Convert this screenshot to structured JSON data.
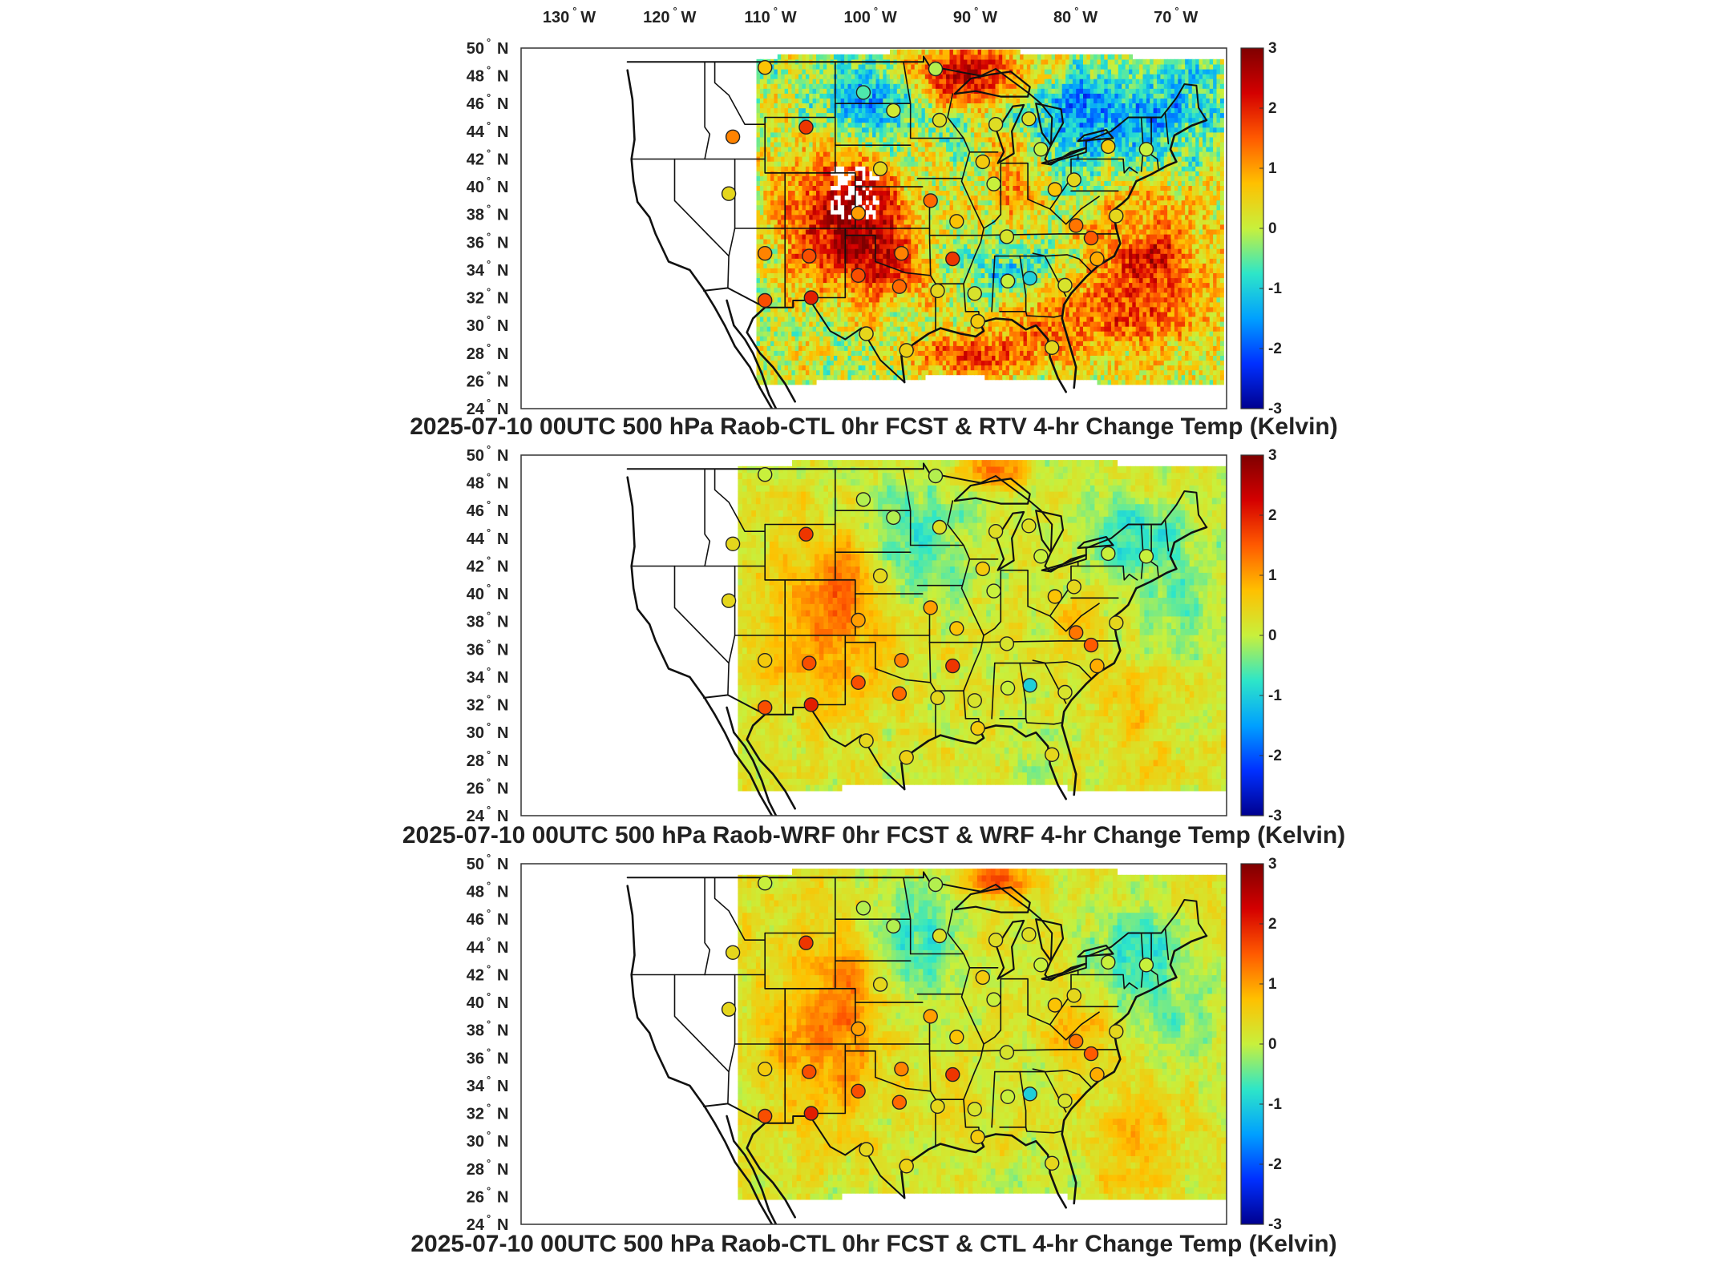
{
  "lon_labels": [
    {
      "deg": "130",
      "hemi": "W"
    },
    {
      "deg": "120",
      "hemi": "W"
    },
    {
      "deg": "110",
      "hemi": "W"
    },
    {
      "deg": "100",
      "hemi": "W"
    },
    {
      "deg": "90",
      "hemi": "W"
    },
    {
      "deg": "80",
      "hemi": "W"
    },
    {
      "deg": "70",
      "hemi": "W"
    }
  ],
  "lat_labels": [
    {
      "deg": "50",
      "hemi": "N"
    },
    {
      "deg": "48",
      "hemi": "N"
    },
    {
      "deg": "46",
      "hemi": "N"
    },
    {
      "deg": "44",
      "hemi": "N"
    },
    {
      "deg": "42",
      "hemi": "N"
    },
    {
      "deg": "40",
      "hemi": "N"
    },
    {
      "deg": "38",
      "hemi": "N"
    },
    {
      "deg": "36",
      "hemi": "N"
    },
    {
      "deg": "34",
      "hemi": "N"
    },
    {
      "deg": "32",
      "hemi": "N"
    },
    {
      "deg": "30",
      "hemi": "N"
    },
    {
      "deg": "28",
      "hemi": "N"
    },
    {
      "deg": "26",
      "hemi": "N"
    },
    {
      "deg": "24",
      "hemi": "N"
    }
  ],
  "colorbar": {
    "min": -3,
    "max": 3,
    "ticks": [
      "3",
      "2",
      "1",
      "0",
      "-1",
      "-2",
      "-3"
    ],
    "colors": [
      "#7f0000",
      "#d40000",
      "#ff5a00",
      "#ffc000",
      "#c8f03c",
      "#2ee6c8",
      "#00a0ff",
      "#0030ff",
      "#00008f"
    ]
  },
  "panels": [
    {
      "id": "rtv",
      "title": "2025-07-10 00UTC 500 hPa Raob-CTL 0hr FCST & RTV 4-hr Change Temp (Kelvin)",
      "style": "hot"
    },
    {
      "id": "wrf",
      "title": "2025-07-10 00UTC 500 hPa Raob-WRF 0hr FCST & WRF 4-hr Change Temp (Kelvin)",
      "style": "mild"
    },
    {
      "id": "ctl",
      "title": "2025-07-10 00UTC 500 hPa Raob-CTL 0hr FCST & CTL 4-hr Change Temp (Kelvin)",
      "style": "mild2"
    }
  ],
  "stations": [
    {
      "lon": -111.0,
      "lat": 48.6,
      "v": [
        0.7,
        0.0,
        0.0
      ]
    },
    {
      "lon": -101.2,
      "lat": 46.8,
      "v": [
        -0.6,
        -0.1,
        -0.1
      ]
    },
    {
      "lon": -94.0,
      "lat": 48.5,
      "v": [
        -0.1,
        -0.1,
        -0.1
      ]
    },
    {
      "lon": -98.2,
      "lat": 45.5,
      "v": [
        0.1,
        -0.1,
        -0.1
      ]
    },
    {
      "lon": -93.6,
      "lat": 44.8,
      "v": [
        0.3,
        0.3,
        0.3
      ]
    },
    {
      "lon": -88.0,
      "lat": 44.5,
      "v": [
        0.3,
        0.3,
        0.3
      ]
    },
    {
      "lon": -84.7,
      "lat": 44.9,
      "v": [
        0.3,
        0.3,
        0.3
      ]
    },
    {
      "lon": -83.5,
      "lat": 42.7,
      "v": [
        0.0,
        0.0,
        0.0
      ]
    },
    {
      "lon": -76.8,
      "lat": 42.9,
      "v": [
        0.6,
        0.0,
        0.0
      ]
    },
    {
      "lon": -73.0,
      "lat": 42.7,
      "v": [
        0.0,
        0.0,
        0.0
      ]
    },
    {
      "lon": -106.9,
      "lat": 44.3,
      "v": [
        1.8,
        1.8,
        1.8
      ]
    },
    {
      "lon": -114.2,
      "lat": 43.6,
      "v": [
        1.2,
        0.4,
        0.4
      ]
    },
    {
      "lon": -114.6,
      "lat": 39.5,
      "v": [
        0.4,
        0.4,
        0.4
      ]
    },
    {
      "lon": -99.5,
      "lat": 41.3,
      "v": [
        0.4,
        0.4,
        0.4
      ]
    },
    {
      "lon": -89.3,
      "lat": 41.8,
      "v": [
        0.6,
        0.6,
        0.6
      ]
    },
    {
      "lon": -88.2,
      "lat": 40.2,
      "v": [
        0.0,
        0.0,
        0.0
      ]
    },
    {
      "lon": -82.1,
      "lat": 39.8,
      "v": [
        0.7,
        0.7,
        0.7
      ]
    },
    {
      "lon": -80.2,
      "lat": 40.5,
      "v": [
        0.4,
        0.4,
        0.4
      ]
    },
    {
      "lon": -94.5,
      "lat": 39.0,
      "v": [
        1.4,
        1.0,
        1.0
      ]
    },
    {
      "lon": -101.7,
      "lat": 38.1,
      "v": [
        1.0,
        1.0,
        1.0
      ]
    },
    {
      "lon": -91.9,
      "lat": 37.5,
      "v": [
        0.7,
        0.7,
        0.7
      ]
    },
    {
      "lon": -86.9,
      "lat": 36.4,
      "v": [
        0.2,
        0.2,
        0.2
      ]
    },
    {
      "lon": -80.0,
      "lat": 37.2,
      "v": [
        1.3,
        1.3,
        1.3
      ]
    },
    {
      "lon": -78.5,
      "lat": 36.3,
      "v": [
        1.5,
        1.5,
        1.5
      ]
    },
    {
      "lon": -76.0,
      "lat": 37.9,
      "v": [
        0.4,
        0.4,
        0.4
      ]
    },
    {
      "lon": -106.6,
      "lat": 35.0,
      "v": [
        1.6,
        1.6,
        1.6
      ]
    },
    {
      "lon": -111.0,
      "lat": 35.2,
      "v": [
        1.2,
        0.6,
        0.6
      ]
    },
    {
      "lon": -97.4,
      "lat": 35.2,
      "v": [
        1.2,
        1.2,
        1.2
      ]
    },
    {
      "lon": -92.3,
      "lat": 34.8,
      "v": [
        1.8,
        1.8,
        1.8
      ]
    },
    {
      "lon": -101.7,
      "lat": 33.6,
      "v": [
        1.6,
        1.6,
        1.6
      ]
    },
    {
      "lon": -97.6,
      "lat": 32.8,
      "v": [
        1.4,
        1.4,
        1.4
      ]
    },
    {
      "lon": -93.8,
      "lat": 32.5,
      "v": [
        0.4,
        0.4,
        0.4
      ]
    },
    {
      "lon": -90.1,
      "lat": 32.3,
      "v": [
        0.2,
        0.2,
        0.2
      ]
    },
    {
      "lon": -86.8,
      "lat": 33.2,
      "v": [
        0.0,
        0.0,
        0.0
      ]
    },
    {
      "lon": -84.6,
      "lat": 33.4,
      "v": [
        -1.0,
        -1.0,
        -1.0
      ]
    },
    {
      "lon": -81.1,
      "lat": 32.9,
      "v": [
        0.2,
        0.2,
        0.2
      ]
    },
    {
      "lon": -77.9,
      "lat": 34.8,
      "v": [
        0.9,
        0.9,
        0.9
      ]
    },
    {
      "lon": -111.0,
      "lat": 31.8,
      "v": [
        1.6,
        1.6,
        1.6
      ]
    },
    {
      "lon": -106.4,
      "lat": 32.0,
      "v": [
        2.0,
        2.0,
        2.0
      ]
    },
    {
      "lon": -100.9,
      "lat": 29.4,
      "v": [
        0.4,
        0.4,
        0.4
      ]
    },
    {
      "lon": -96.9,
      "lat": 28.2,
      "v": [
        0.5,
        0.5,
        0.5
      ]
    },
    {
      "lon": -89.8,
      "lat": 30.3,
      "v": [
        0.6,
        0.6,
        0.6
      ]
    },
    {
      "lon": -82.4,
      "lat": 28.4,
      "v": [
        0.4,
        0.4,
        0.4
      ]
    }
  ]
}
